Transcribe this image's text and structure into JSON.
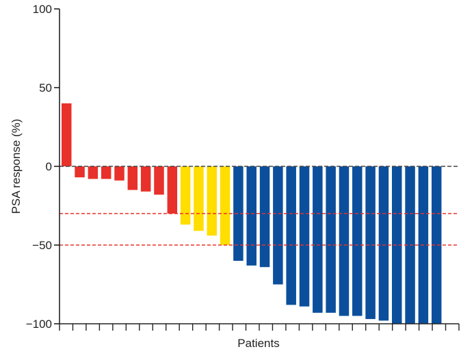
{
  "chart_data": {
    "type": "bar",
    "title": "",
    "xlabel": "Patients",
    "ylabel": "PSA response (%)",
    "ylim": [
      -100,
      100
    ],
    "yticks": [
      {
        "value": 100,
        "label": "100"
      },
      {
        "value": 50,
        "label": "50"
      },
      {
        "value": 0,
        "label": "0"
      },
      {
        "value": -50,
        "label": "−50"
      },
      {
        "value": -100,
        "label": "−100"
      }
    ],
    "values": [
      40,
      -7,
      -8,
      -8,
      -9,
      -15,
      -16,
      -18,
      -30,
      -37,
      -41,
      -44,
      -50,
      -60,
      -63,
      -64,
      -75,
      -88,
      -89,
      -93,
      -93,
      -95,
      -95,
      -97,
      -98,
      -100,
      -100,
      -100,
      -100
    ],
    "groups": [
      "red",
      "red",
      "red",
      "red",
      "red",
      "red",
      "red",
      "red",
      "red",
      "yellow",
      "yellow",
      "yellow",
      "yellow",
      "blue",
      "blue",
      "blue",
      "blue",
      "blue",
      "blue",
      "blue",
      "blue",
      "blue",
      "blue",
      "blue",
      "blue",
      "blue",
      "blue",
      "blue",
      "blue"
    ],
    "group_colors": {
      "red": "#e8312a",
      "yellow": "#ffde00",
      "blue": "#0b4f9c"
    },
    "reference_lines": [
      {
        "value": 0,
        "style": "dashed",
        "color": "#444444"
      },
      {
        "value": -30,
        "style": "dashed",
        "color": "#e8312a"
      },
      {
        "value": -50,
        "style": "dashed",
        "color": "#e8312a"
      }
    ],
    "grid": false,
    "legend": "none"
  }
}
